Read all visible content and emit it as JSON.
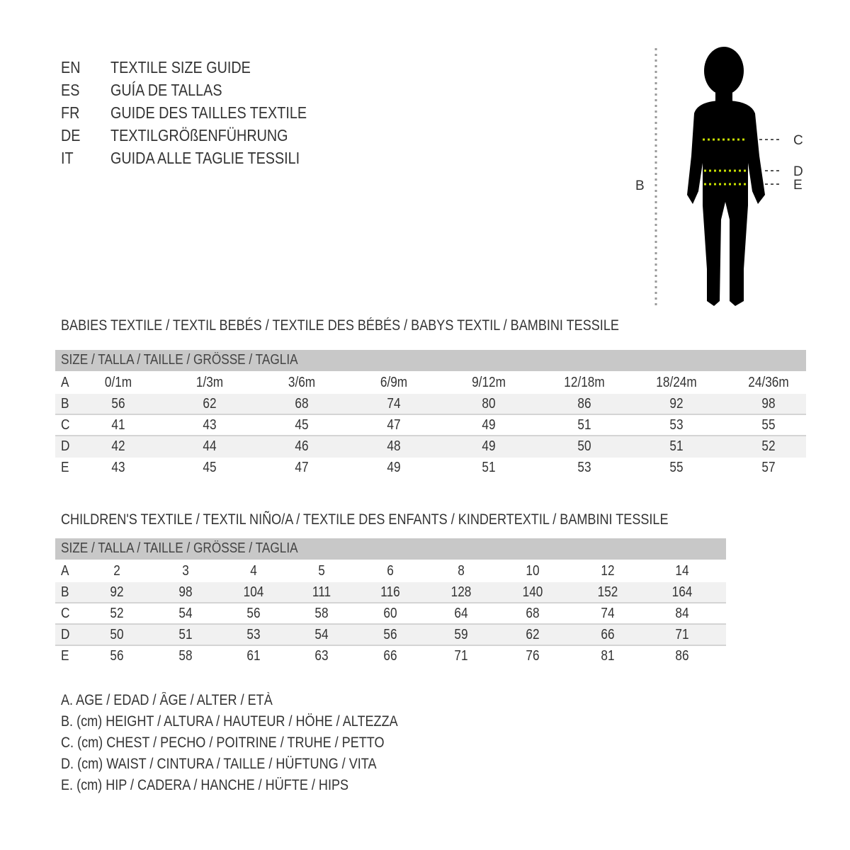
{
  "title_lines": [
    {
      "code": "EN",
      "text": "TEXTILE SIZE GUIDE"
    },
    {
      "code": "ES",
      "text": "GUÍA DE TALLAS"
    },
    {
      "code": "FR",
      "text": "GUIDE DES TAILLES TEXTILE"
    },
    {
      "code": "DE",
      "text": "TEXTILGRÖßENFÜHRUNG"
    },
    {
      "code": "IT",
      "text": "GUIDA ALLE TAGLIE TESSILI"
    }
  ],
  "figure": {
    "labels": {
      "B": "B",
      "C": "C",
      "D": "D",
      "E": "E"
    },
    "marker_color": "#c8e000"
  },
  "babies": {
    "title": "BABIES TEXTILE / TEXTIL BEBÉS / TEXTILE DES BÉBÉS / BABYS TEXTIL  / BAMBINI TESSILE",
    "header": "SIZE / TALLA / TAILLE / GRÖSSE / TAGLIA",
    "rows": [
      {
        "label": "A",
        "values": [
          "0/1m",
          "1/3m",
          "3/6m",
          "6/9m",
          "9/12m",
          "12/18m",
          "18/24m",
          "24/36m"
        ]
      },
      {
        "label": "B",
        "values": [
          "56",
          "62",
          "68",
          "74",
          "80",
          "86",
          "92",
          "98"
        ]
      },
      {
        "label": "C",
        "values": [
          "41",
          "43",
          "45",
          "47",
          "49",
          "51",
          "53",
          "55"
        ]
      },
      {
        "label": "D",
        "values": [
          "42",
          "44",
          "46",
          "48",
          "49",
          "50",
          "51",
          "52"
        ]
      },
      {
        "label": "E",
        "values": [
          "43",
          "45",
          "47",
          "49",
          "51",
          "53",
          "55",
          "57"
        ]
      }
    ]
  },
  "children": {
    "title": "CHILDREN'S TEXTILE / TEXTIL NIÑO/A / TEXTILE DES ENFANTS / KINDERTEXTIL / BAMBINI TESSILE",
    "header": "SIZE / TALLA / TAILLE / GRÖSSE / TAGLIA",
    "rows": [
      {
        "label": "A",
        "values": [
          "2",
          "3",
          "4",
          "5",
          "6",
          "8",
          "10",
          "12",
          "14"
        ]
      },
      {
        "label": "B",
        "values": [
          "92",
          "98",
          "104",
          "111",
          "116",
          "128",
          "140",
          "152",
          "164"
        ]
      },
      {
        "label": "C",
        "values": [
          "52",
          "54",
          "56",
          "58",
          "60",
          "64",
          "68",
          "74",
          "84"
        ]
      },
      {
        "label": "D",
        "values": [
          "50",
          "51",
          "53",
          "54",
          "56",
          "59",
          "62",
          "66",
          "71"
        ]
      },
      {
        "label": "E",
        "values": [
          "56",
          "58",
          "61",
          "63",
          "66",
          "71",
          "76",
          "81",
          "86"
        ]
      }
    ]
  },
  "legend": [
    "A. AGE / EDAD / ÂGE / ALTER / ETÀ",
    "B. (cm) HEIGHT / ALTURA / HAUTEUR / HÖHE / ALTEZZA",
    "C. (cm) CHEST / PECHO / POITRINE / TRUHE / PETTO",
    "D. (cm) WAIST / CINTURA / TAILLE / HÜFTUNG / VITA",
    "E. (cm) HIP / CADERA / HANCHE / HÜFTE / HIPS"
  ]
}
